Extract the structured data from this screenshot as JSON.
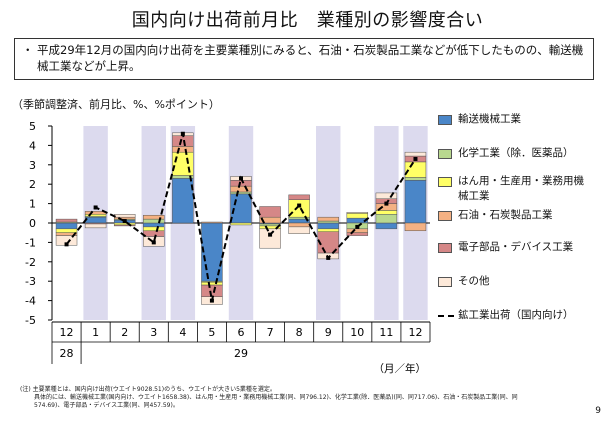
{
  "title": "国内向け出荷前月比　業種別の影響度合い",
  "summary": {
    "bullet": "・",
    "text": "平成29年12月の国内向け出荷を主要業種別にみると、石油・石炭製品工業などが低下したものの、輸送機械工業などが上昇。"
  },
  "units_label": "（季節調整済、前月比、%、%ポイント）",
  "axis_unit": "（月／年）",
  "page_number": "9",
  "notes": [
    "(注) 主要業種とは、国内向け出荷(ウエイト9028.51)のうち、ウエイトが大きい5業種を選定。",
    "具体的には、輸送機械工業(国内向け、ウエイト1658.38)、はん用・生産用・業務用機械工業(同、同796.12)、化学工業(除．医薬品)(同、同717.06)、石油・石炭製品工業(同、同",
    "574.69)、電子部品・デバイス工業(同、同457.59)。"
  ],
  "chart_data": {
    "type": "bar",
    "stacked": true,
    "categories": [
      "12",
      "1",
      "2",
      "3",
      "4",
      "5",
      "6",
      "7",
      "8",
      "9",
      "10",
      "11",
      "12"
    ],
    "year_labels": [
      {
        "text": "28",
        "category_index": 0
      },
      {
        "text": "29",
        "category_index": 6
      }
    ],
    "ylim": [
      -5,
      5
    ],
    "yticks": [
      5,
      4,
      3,
      2,
      1,
      0,
      -1,
      -2,
      -3,
      -4,
      -5
    ],
    "shaded_months": [
      "1",
      "3",
      "4",
      "6",
      "9",
      "11",
      "12"
    ],
    "series": [
      {
        "name": "輸送機械工業",
        "color": "#4a86c8",
        "values": [
          -0.3,
          0.3,
          0.15,
          -0.2,
          2.3,
          -3.0,
          1.5,
          -0.05,
          0.2,
          -0.3,
          0.25,
          -0.3,
          2.2
        ]
      },
      {
        "name": "化学工業（除．医薬品）",
        "color": "#b9d88f",
        "values": [
          0.05,
          0.05,
          0.05,
          0.2,
          0.15,
          -0.05,
          0.1,
          -0.1,
          0.1,
          0.1,
          -0.3,
          0.45,
          0.15
        ]
      },
      {
        "name": "はん用・生産用・業務用機械工業",
        "color": "#ffff66",
        "values": [
          -0.2,
          0.1,
          -0.1,
          -0.2,
          1.2,
          -0.15,
          -0.1,
          -0.15,
          0.9,
          -0.15,
          0.25,
          0.2,
          0.8
        ]
      },
      {
        "name": "石油・石炭製品工業",
        "color": "#f4b183",
        "values": [
          -0.15,
          0.15,
          0.1,
          0.2,
          0.3,
          0.05,
          0.3,
          0.3,
          -0.2,
          0.2,
          -0.2,
          0.35,
          -0.4
        ]
      },
      {
        "name": "電子部品・デバイス工業",
        "color": "#d58787",
        "values": [
          0.15,
          -0.05,
          -0.05,
          -0.3,
          0.55,
          -0.6,
          0.3,
          0.55,
          0.25,
          -1.1,
          -0.15,
          0.25,
          0.3
        ]
      },
      {
        "name": "その他",
        "color": "#fde9d9",
        "values": [
          -0.5,
          -0.2,
          0.15,
          -0.5,
          0.15,
          -0.4,
          0.2,
          -1.0,
          -0.35,
          -0.3,
          0.05,
          0.3,
          0.2
        ]
      }
    ],
    "line": {
      "name": "鉱工業出荷（国内向け）",
      "values": [
        -1.1,
        0.8,
        0.1,
        -1.0,
        4.6,
        -4.0,
        2.3,
        -0.6,
        0.9,
        -1.8,
        -0.2,
        1.0,
        3.3
      ]
    }
  }
}
